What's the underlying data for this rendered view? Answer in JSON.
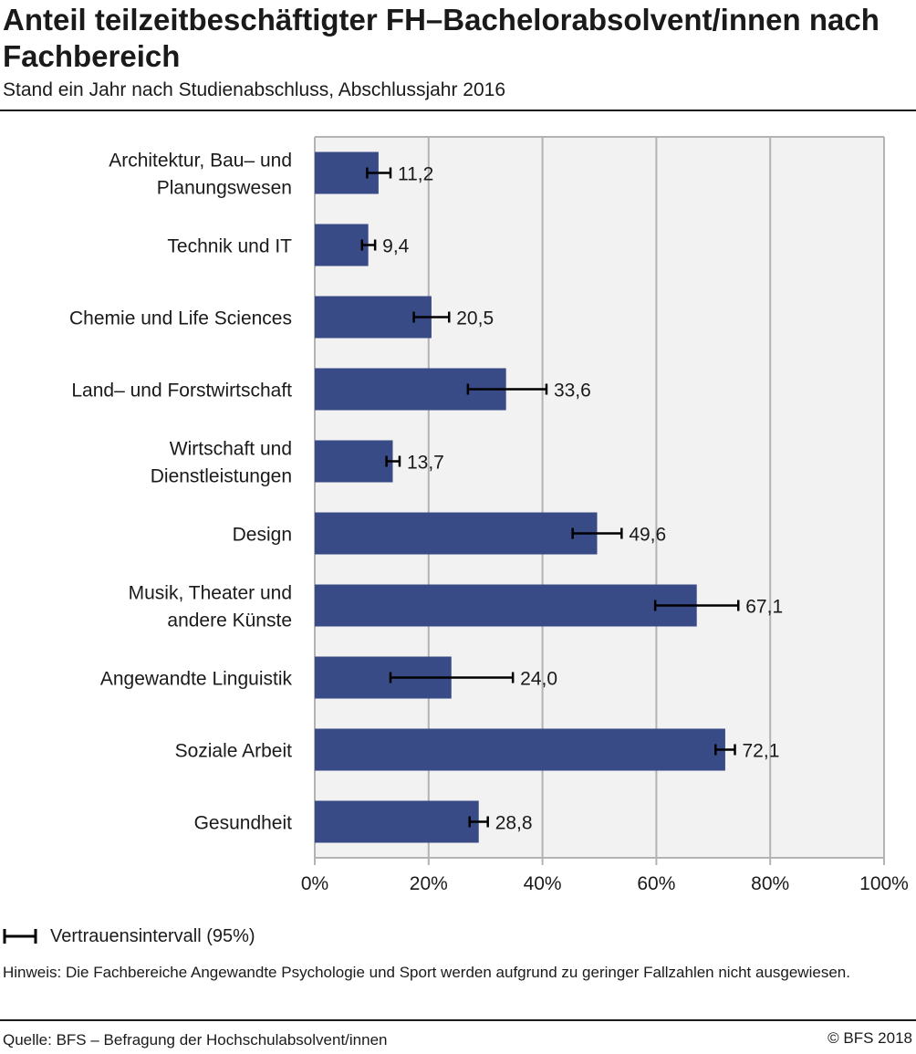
{
  "header": {
    "title": "Anteil teilzeitbeschäftigter FH–Bachelorabsolvent/innen nach Fachbereich",
    "subtitle": "Stand ein Jahr nach Studienabschluss, Abschlussjahr 2016"
  },
  "chart_data": {
    "type": "bar",
    "orientation": "horizontal",
    "categories": [
      "Architektur, Bau– und Planungswesen",
      "Technik und IT",
      "Chemie und Life Sciences",
      "Land– und Forstwirtschaft",
      "Wirtschaft und Dienstleistungen",
      "Design",
      "Musik, Theater und andere Künste",
      "Angewandte Linguistik",
      "Soziale Arbeit",
      "Gesundheit"
    ],
    "values": [
      11.2,
      9.4,
      20.5,
      33.6,
      13.7,
      49.6,
      67.1,
      24.0,
      72.1,
      28.8
    ],
    "value_labels": [
      "11,2",
      "9,4",
      "20,5",
      "33,6",
      "13,7",
      "49,6",
      "67,1",
      "24,0",
      "72,1",
      "28,8"
    ],
    "confidence_intervals": [
      [
        9.2,
        13.3
      ],
      [
        8.3,
        10.6
      ],
      [
        17.4,
        23.6
      ],
      [
        26.9,
        40.7
      ],
      [
        12.6,
        14.9
      ],
      [
        45.3,
        53.9
      ],
      [
        59.8,
        74.4
      ],
      [
        13.3,
        34.8
      ],
      [
        70.4,
        73.8
      ],
      [
        27.2,
        30.4
      ]
    ],
    "xlim": [
      0,
      100
    ],
    "x_ticks": [
      "0%",
      "20%",
      "40%",
      "60%",
      "80%",
      "100%"
    ],
    "grid": true,
    "colors": {
      "bar": "#394b86",
      "plot_bg": "#f2f2f2",
      "grid": "#b3b3b3",
      "error_bar": "#000000"
    }
  },
  "legend": {
    "label": "Vertrauensintervall (95%)"
  },
  "note": "Hinweis: Die Fachbereiche Angewandte Psychologie und Sport werden aufgrund zu geringer Fallzahlen nicht ausgewiesen.",
  "footer": {
    "source": "Quelle: BFS – Befragung der Hochschulabsolvent/innen",
    "copyright": "© BFS 2018"
  }
}
